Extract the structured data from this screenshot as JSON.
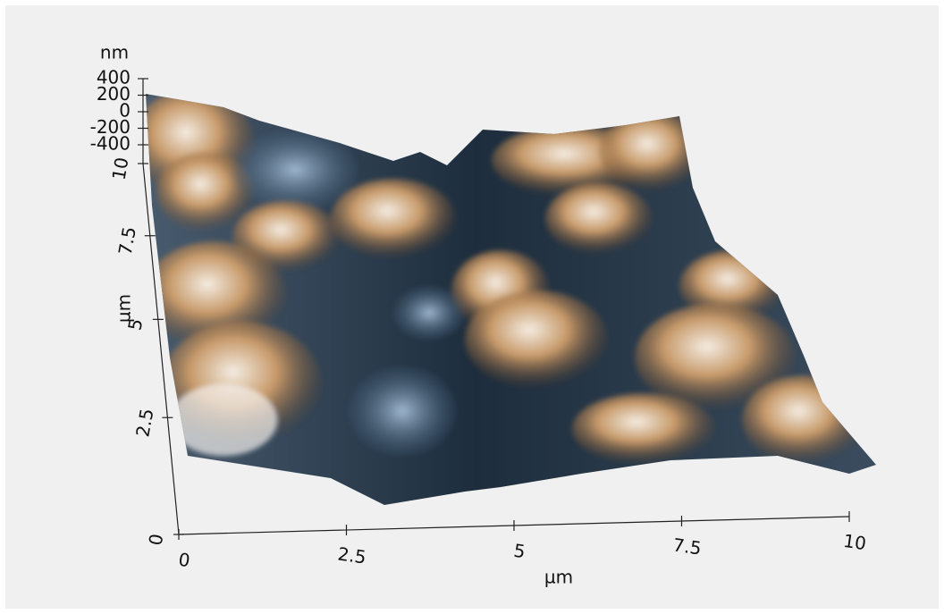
{
  "chart_data": {
    "type": "surface",
    "x_label": "µm",
    "y_label": "µm",
    "z_label": "nm",
    "xlim": [
      0,
      10
    ],
    "xticks": [
      0,
      2.5,
      5,
      7.5,
      10
    ],
    "ylim": [
      0,
      10
    ],
    "yticks": [
      0,
      2.5,
      5,
      7.5,
      10
    ],
    "zlim": [
      -400,
      400
    ],
    "zticks": [
      400,
      200,
      0,
      -200,
      -400
    ]
  }
}
